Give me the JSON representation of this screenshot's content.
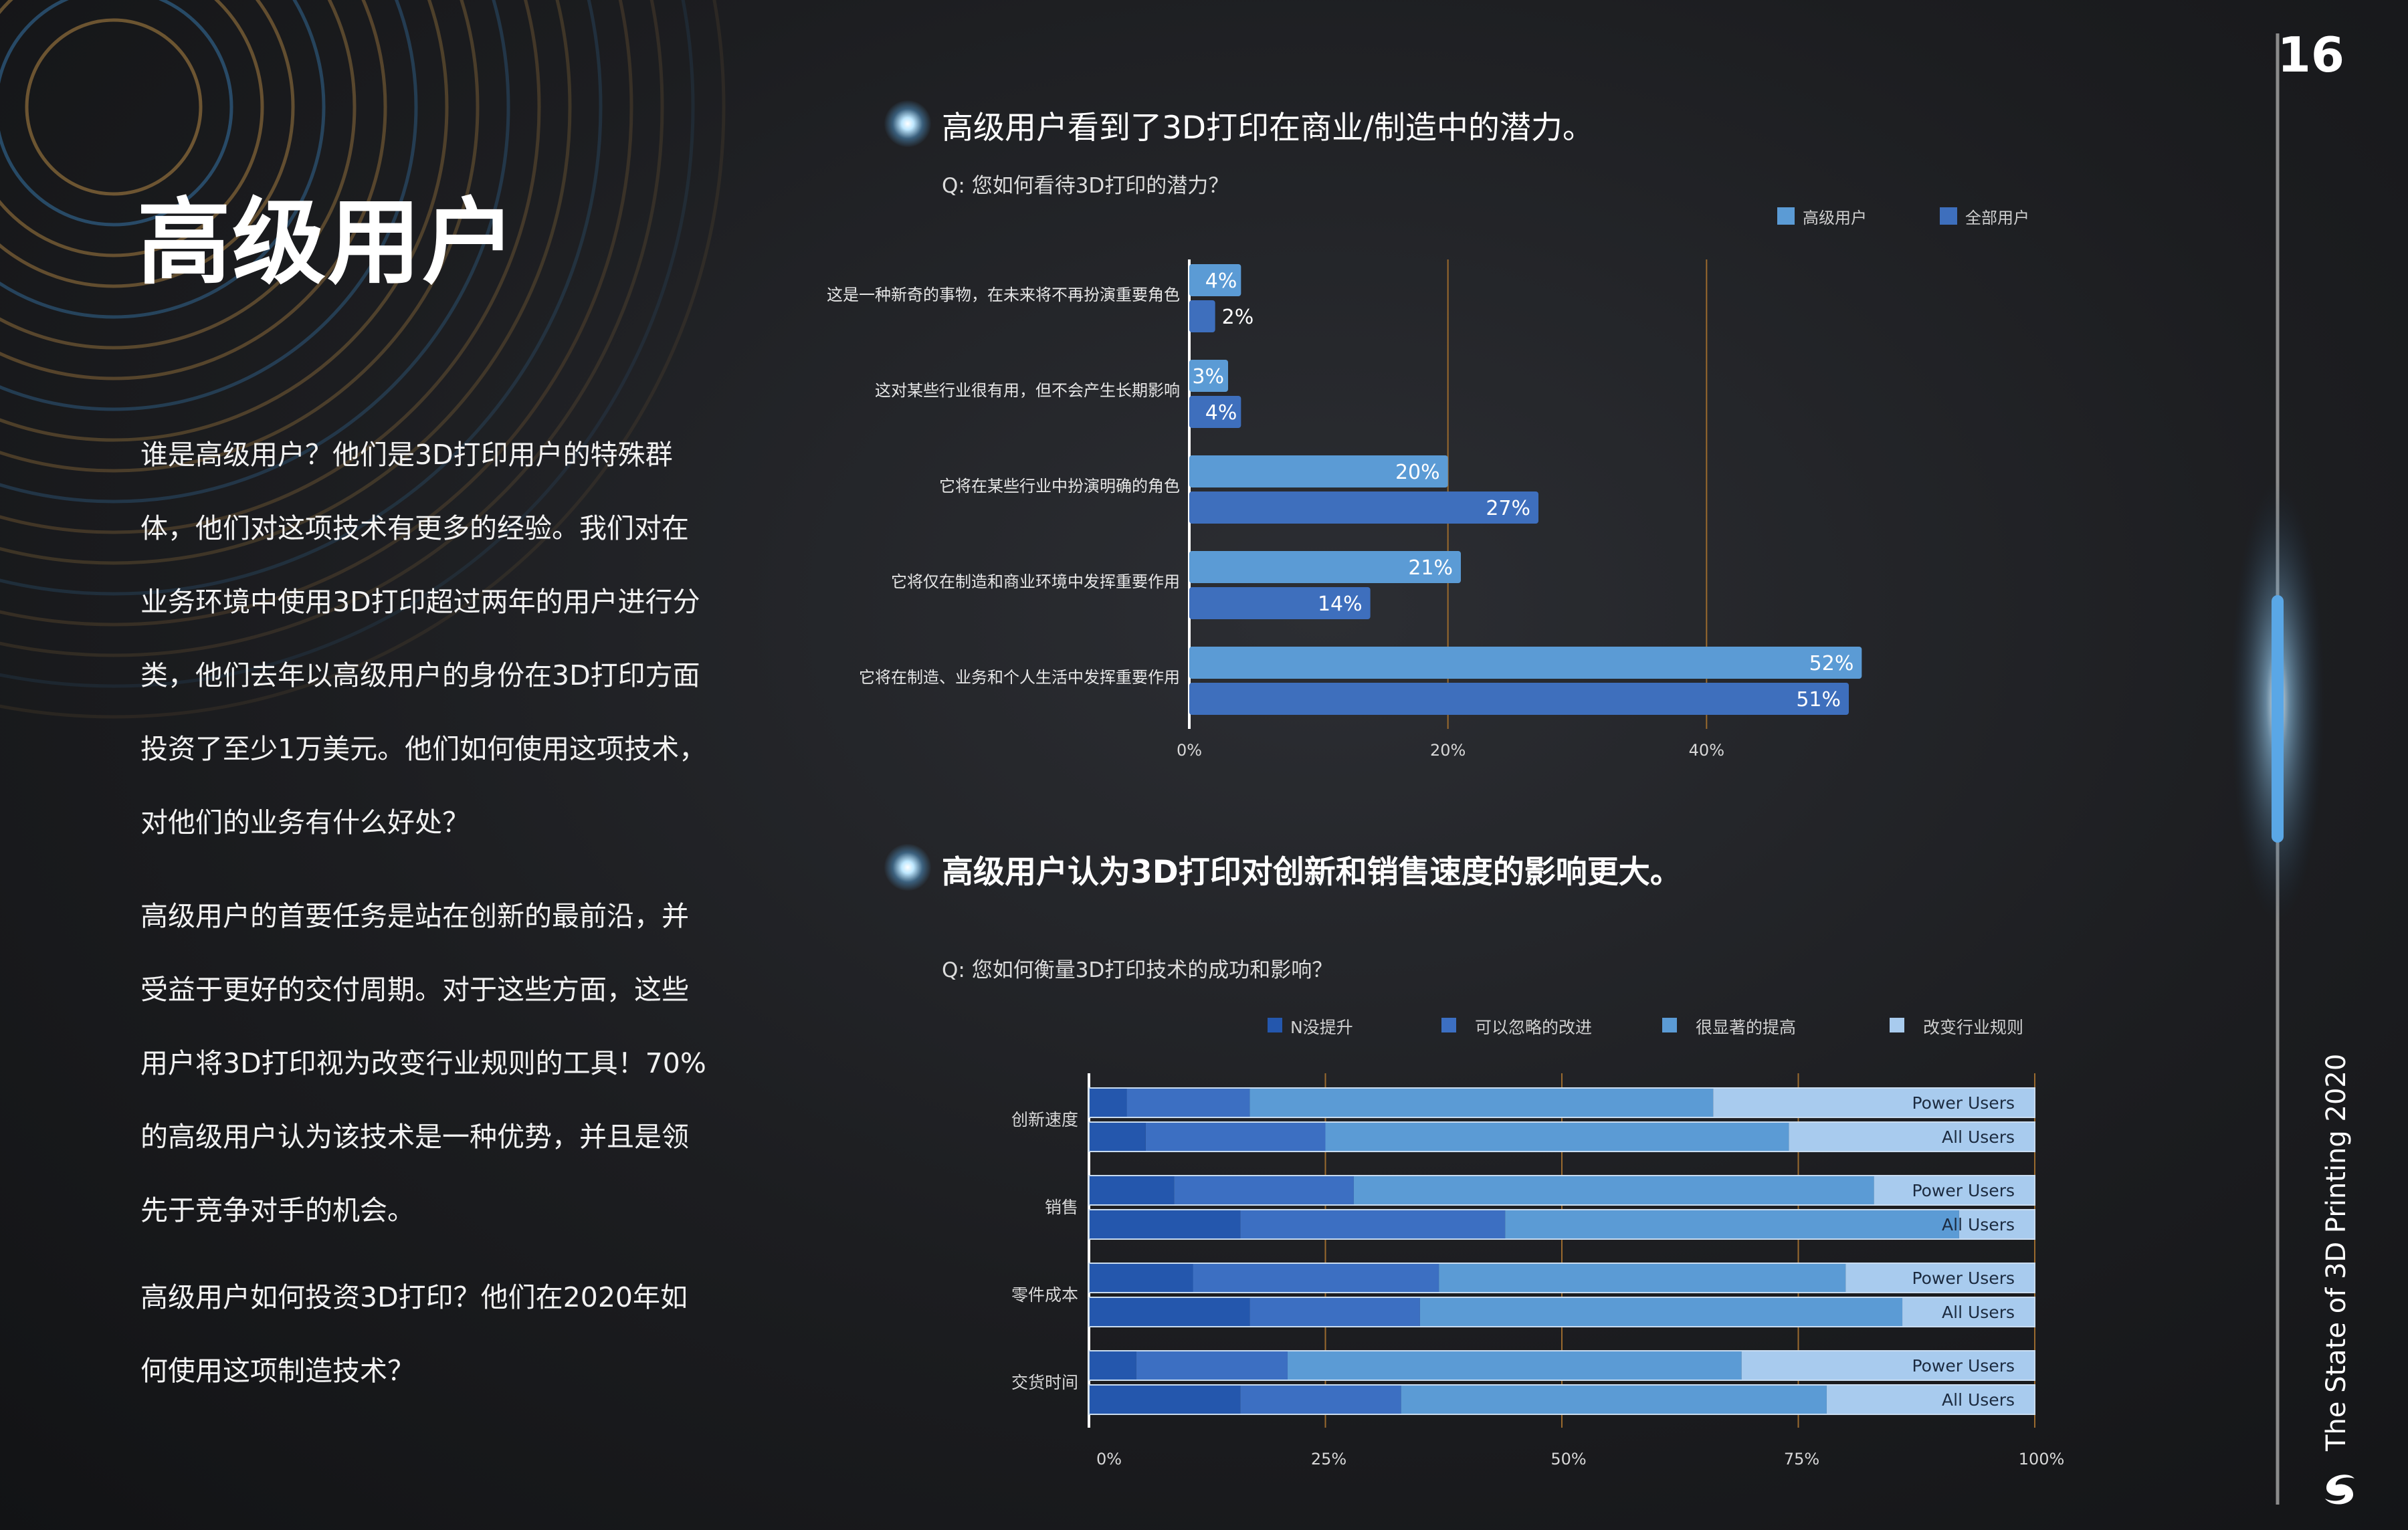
{
  "page": {
    "number": "16",
    "title": "高级用户",
    "footer": "The State of 3D Printing 2020",
    "paragraphs": [
      "谁是高级用户？他们是3D打印用户的特殊群体，他们对这项技术有更多的经验。我们对在业务环境中使用3D打印超过两年的用户进行分类，他们去年以高级用户的身份在3D打印方面投资了至少1万美元。他们如何使用这项技术，对他们的业务有什么好处？",
      "高级用户的首要任务是站在创新的最前沿，并受益于更好的交付周期。对于这些方面，这些用户将3D打印视为改变行业规则的工具！70%的高级用户认为该技术是一种优势，并且是领先于竞争对手的机会。",
      "高级用户如何投资3D打印？他们在2020年如何使用这项制造技术？"
    ],
    "colors": {
      "background": "#1d1e21",
      "accent_gold": "#b08a4a",
      "accent_blue": "#4f9ad8"
    }
  },
  "sections": [
    {
      "title": "高级用户看到了3D打印在商业/制造中的潜力。",
      "question": "Q: 您如何看待3D打印的潜力？"
    },
    {
      "title": "高级用户认为3D打印对创新和销售速度的影响更大。",
      "question": "Q: 您如何衡量3D打印技术的成功和影响？"
    }
  ],
  "chart_data": [
    {
      "type": "bar",
      "orientation": "horizontal",
      "categories": [
        "这是一种新奇的事物，在未来将不再扮演重要角色",
        "这对某些行业很有用，但不会产生长期影响",
        "它将在某些行业中扮演明确的角色",
        "它将仅在制造和商业环境中发挥重要作用",
        "它将在制造、业务和个人生活中发挥重要作用"
      ],
      "series": [
        {
          "name": "高级用户",
          "values": [
            4,
            3,
            20,
            21,
            52
          ],
          "labels": [
            "4%",
            "3%",
            "20%",
            "21%",
            "52%"
          ],
          "color": "#5b9bd5"
        },
        {
          "name": "全部用户",
          "values": [
            2,
            4,
            27,
            14,
            51
          ],
          "labels": [
            "2%",
            "4%",
            "27%",
            "14%",
            "51%"
          ],
          "color": "#3e6fbd"
        }
      ],
      "xlim": [
        0,
        57
      ],
      "xticks": [
        0,
        20,
        40
      ],
      "xtick_labels": [
        "0%",
        "20%",
        "40%"
      ],
      "legend": "top-right",
      "grid": true
    },
    {
      "type": "bar",
      "orientation": "horizontal",
      "stacked": "percent",
      "categories": [
        "创新速度",
        "销售",
        "零件成本",
        "交货时间"
      ],
      "groups": [
        "Power Users",
        "All Users"
      ],
      "series": [
        {
          "name": "N没提升",
          "color": "#2457ad",
          "values": [
            [
              4,
              6
            ],
            [
              9,
              16
            ],
            [
              11,
              17
            ],
            [
              5,
              16
            ]
          ]
        },
        {
          "name": "可以忽略的改进",
          "color": "#3c6fc2",
          "values": [
            [
              13,
              19
            ],
            [
              19,
              28
            ],
            [
              26,
              18
            ],
            [
              16,
              17
            ]
          ]
        },
        {
          "name": "很显著的提高",
          "color": "#5b9bd5",
          "values": [
            [
              49,
              49
            ],
            [
              55,
              48
            ],
            [
              43,
              51
            ],
            [
              48,
              45
            ]
          ]
        },
        {
          "name": "改变行业规则",
          "color": "#a8cbee",
          "values": [
            [
              34,
              26
            ],
            [
              17,
              8
            ],
            [
              20,
              14
            ],
            [
              31,
              22
            ]
          ]
        }
      ],
      "xlim": [
        0,
        100
      ],
      "xticks": [
        0,
        25,
        50,
        75,
        100
      ],
      "xtick_labels": [
        "0%",
        "25%",
        "50%",
        "75%",
        "100%"
      ],
      "legend": "top",
      "grid": true
    }
  ]
}
